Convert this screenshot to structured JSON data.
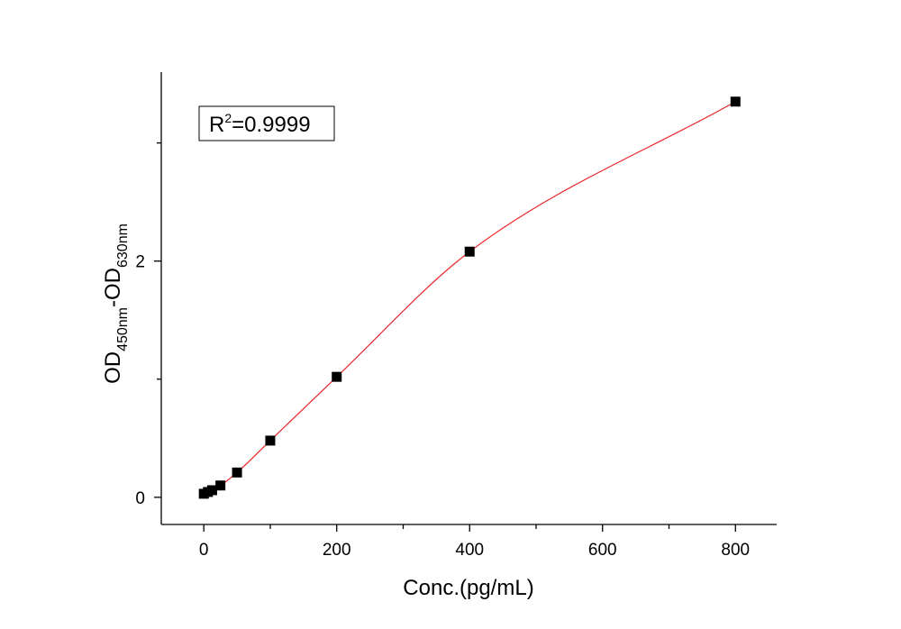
{
  "chart_data": {
    "type": "scatter",
    "xlabel": "Conc.(pg/mL)",
    "ylabel": {
      "main1": "OD",
      "sub1": "450nm",
      "dash": "-",
      "main2": "OD",
      "sub2": "630nm"
    },
    "annotation": {
      "prefix": "R",
      "sup": "2",
      "suffix": "=0.9999"
    },
    "xlim": [
      -64,
      862
    ],
    "ylim": [
      -0.23,
      3.6
    ],
    "x_major_ticks": [
      0,
      200,
      400,
      600,
      800
    ],
    "x_minor_ticks": [
      100,
      300,
      500,
      700
    ],
    "x_tick_labels": [
      "0",
      "200",
      "400",
      "600",
      "800"
    ],
    "y_major_ticks": [
      0,
      2
    ],
    "y_minor_ticks": [
      1,
      3
    ],
    "y_tick_labels": [
      "0",
      "2"
    ],
    "grid": false,
    "series": [
      {
        "x": [
          0,
          6.25,
          12.5,
          25,
          50,
          100,
          200,
          400,
          800
        ],
        "y": [
          0.03,
          0.045,
          0.06,
          0.1,
          0.21,
          0.48,
          1.02,
          2.08,
          3.35
        ],
        "marker": "square",
        "marker_color": "#000000",
        "fit_line_color": "#e8262a"
      }
    ]
  }
}
